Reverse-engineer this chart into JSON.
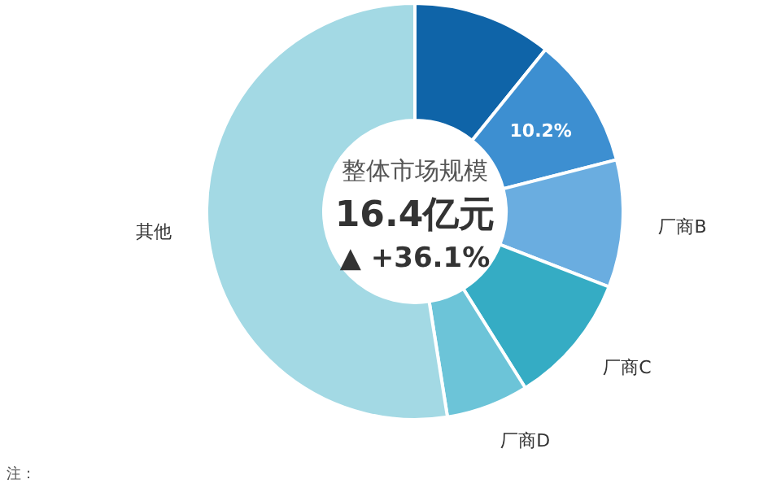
{
  "chart_data": {
    "type": "donut",
    "categories": [
      null,
      null,
      "厂商B",
      "厂商C",
      "厂商D",
      "其他"
    ],
    "values": [
      10.8,
      10.2,
      9.9,
      10.2,
      6.4,
      52.5
    ],
    "value_labels": [
      null,
      "10.2%",
      null,
      null,
      null,
      null
    ],
    "colors": [
      "#0f64a8",
      "#3d8fd1",
      "#6aade0",
      "#35acc4",
      "#6cc4d8",
      "#a3d9e4"
    ],
    "annotations": [
      "整体市场规模",
      "16.4亿元",
      "▲ +36.1%",
      "注："
    ]
  }
}
